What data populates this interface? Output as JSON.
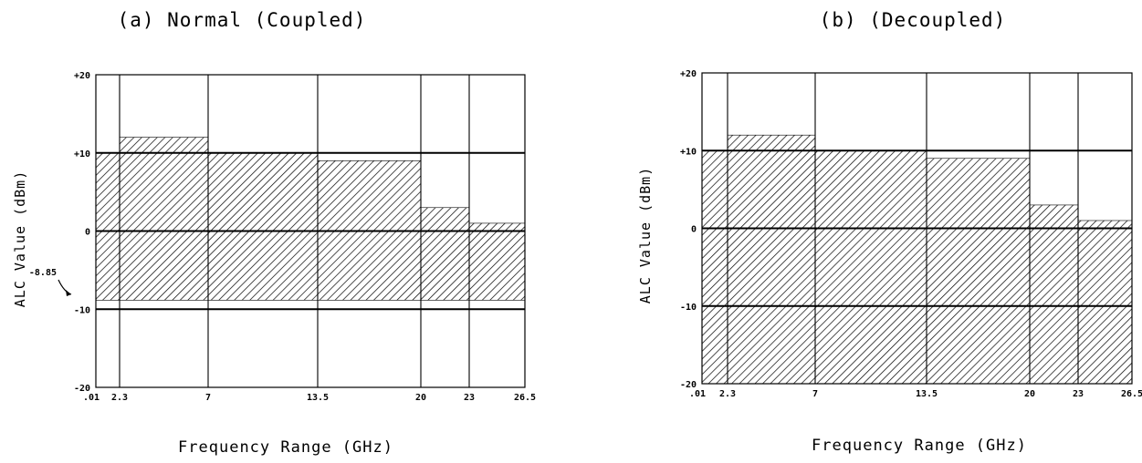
{
  "chart_data": [
    {
      "type": "area",
      "title": "(a) Normal (Coupled)",
      "xlabel": "Frequency Range (GHz)",
      "ylabel": "ALC Value (dBm)",
      "x_ticks": [
        ".01",
        "2.3",
        "7",
        "13.5",
        "20",
        "23",
        "26.5"
      ],
      "y_ticks": [
        "+20",
        "+10",
        "0",
        "-10",
        "-20"
      ],
      "ylim": [
        -20,
        20
      ],
      "grid": true,
      "annotation": "-8.85",
      "segments": [
        {
          "x_start": ".01",
          "x_end": "2.3",
          "y_top": 10,
          "y_bottom": -8.85
        },
        {
          "x_start": "2.3",
          "x_end": "7",
          "y_top": 12,
          "y_bottom": -8.85
        },
        {
          "x_start": "7",
          "x_end": "13.5",
          "y_top": 10,
          "y_bottom": -8.85
        },
        {
          "x_start": "13.5",
          "x_end": "20",
          "y_top": 9,
          "y_bottom": -8.85
        },
        {
          "x_start": "20",
          "x_end": "23",
          "y_top": 3,
          "y_bottom": -8.85
        },
        {
          "x_start": "23",
          "x_end": "26.5",
          "y_top": 1,
          "y_bottom": -8.85
        }
      ]
    },
    {
      "type": "area",
      "title": "(b) (Decoupled)",
      "xlabel": "Frequency Range (GHz)",
      "ylabel": "ALC Value (dBm)",
      "x_ticks": [
        ".01",
        "2.3",
        "7",
        "13.5",
        "20",
        "23",
        "26.5"
      ],
      "y_ticks": [
        "+20",
        "+10",
        "0",
        "-10",
        "-20"
      ],
      "ylim": [
        -20,
        20
      ],
      "grid": true,
      "segments": [
        {
          "x_start": ".01",
          "x_end": "2.3",
          "y_top": 10,
          "y_bottom": -20
        },
        {
          "x_start": "2.3",
          "x_end": "7",
          "y_top": 12,
          "y_bottom": -20
        },
        {
          "x_start": "7",
          "x_end": "13.5",
          "y_top": 10,
          "y_bottom": -20
        },
        {
          "x_start": "13.5",
          "x_end": "20",
          "y_top": 9,
          "y_bottom": -20
        },
        {
          "x_start": "20",
          "x_end": "23",
          "y_top": 3,
          "y_bottom": -20
        },
        {
          "x_start": "23",
          "x_end": "26.5",
          "y_top": 1,
          "y_bottom": -20
        }
      ]
    }
  ]
}
